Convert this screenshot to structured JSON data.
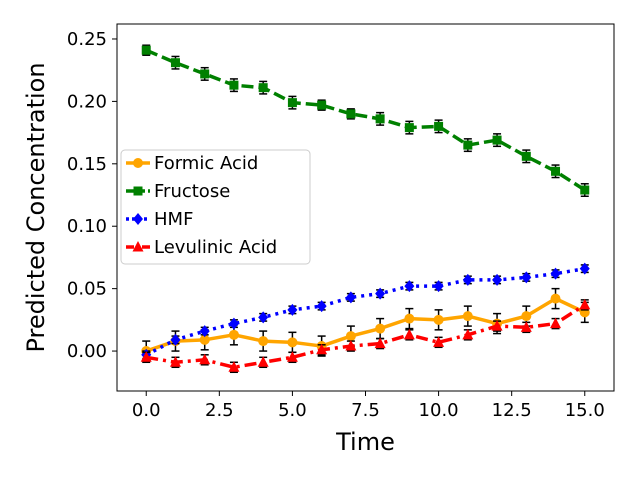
{
  "chart_data": {
    "type": "line",
    "xlabel": "Time",
    "ylabel": "Predicted Concentration",
    "xlim": [
      -1,
      16
    ],
    "ylim": [
      -0.032,
      0.262
    ],
    "xticks": [
      0.0,
      2.5,
      5.0,
      7.5,
      10.0,
      12.5,
      15.0
    ],
    "xtick_labels": [
      "0.0",
      "2.5",
      "5.0",
      "7.5",
      "10.0",
      "12.5",
      "15.0"
    ],
    "yticks": [
      0.0,
      0.05,
      0.1,
      0.15,
      0.2,
      0.25
    ],
    "ytick_labels": [
      "0.00",
      "0.05",
      "0.10",
      "0.15",
      "0.20",
      "0.25"
    ],
    "grid": false,
    "legend_position": "center-left",
    "x": [
      0,
      1,
      2,
      3,
      4,
      5,
      6,
      7,
      8,
      9,
      10,
      11,
      12,
      13,
      14,
      15
    ],
    "series": [
      {
        "name": "Formic Acid",
        "color": "#ffa500",
        "linestyle": "solid",
        "marker": "circle",
        "values": [
          0.0,
          0.008,
          0.009,
          0.013,
          0.008,
          0.007,
          0.004,
          0.012,
          0.018,
          0.026,
          0.025,
          0.028,
          0.022,
          0.028,
          0.042,
          0.031
        ],
        "errors": [
          0.008,
          0.008,
          0.008,
          0.008,
          0.008,
          0.008,
          0.008,
          0.008,
          0.008,
          0.008,
          0.008,
          0.008,
          0.008,
          0.008,
          0.008,
          0.008
        ]
      },
      {
        "name": "Fructose",
        "color": "#008000",
        "linestyle": "dashed",
        "marker": "square",
        "values": [
          0.241,
          0.231,
          0.222,
          0.213,
          0.211,
          0.199,
          0.197,
          0.19,
          0.186,
          0.179,
          0.18,
          0.165,
          0.169,
          0.156,
          0.144,
          0.129
        ],
        "errors": [
          0.004,
          0.005,
          0.005,
          0.005,
          0.005,
          0.005,
          0.004,
          0.004,
          0.005,
          0.005,
          0.005,
          0.005,
          0.005,
          0.005,
          0.005,
          0.005
        ]
      },
      {
        "name": "HMF",
        "color": "#0000ff",
        "linestyle": "dotted",
        "marker": "diamond",
        "values": [
          -0.003,
          0.009,
          0.016,
          0.022,
          0.027,
          0.033,
          0.036,
          0.043,
          0.046,
          0.052,
          0.052,
          0.057,
          0.057,
          0.059,
          0.062,
          0.066
        ],
        "errors": [
          0.003,
          0.003,
          0.003,
          0.003,
          0.003,
          0.003,
          0.003,
          0.003,
          0.003,
          0.003,
          0.003,
          0.003,
          0.003,
          0.003,
          0.003,
          0.003
        ]
      },
      {
        "name": "Levulinic Acid",
        "color": "#ff0000",
        "linestyle": "dashdot",
        "marker": "triangle",
        "values": [
          -0.005,
          -0.009,
          -0.007,
          -0.013,
          -0.009,
          -0.005,
          0.001,
          0.004,
          0.006,
          0.013,
          0.007,
          0.013,
          0.02,
          0.019,
          0.022,
          0.037
        ],
        "errors": [
          0.004,
          0.004,
          0.004,
          0.004,
          0.004,
          0.004,
          0.004,
          0.004,
          0.004,
          0.004,
          0.004,
          0.004,
          0.004,
          0.004,
          0.004,
          0.004
        ]
      }
    ]
  }
}
